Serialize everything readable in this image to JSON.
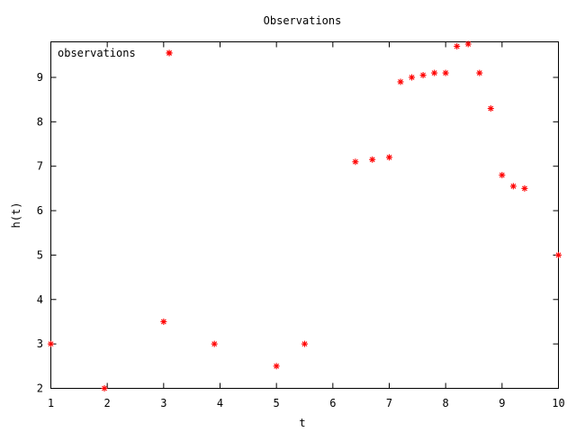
{
  "chart_data": {
    "type": "scatter",
    "title": "Observations",
    "xlabel": "t",
    "ylabel": "h(t)",
    "xlim": [
      1,
      10
    ],
    "ylim": [
      2,
      9.8
    ],
    "xticks": [
      1,
      2,
      3,
      4,
      5,
      6,
      7,
      8,
      9,
      10
    ],
    "yticks": [
      2,
      3,
      4,
      5,
      6,
      7,
      8,
      9
    ],
    "legend": {
      "position": "top-left",
      "entries": [
        "observations"
      ]
    },
    "grid": false,
    "marker": "asterisk",
    "series": [
      {
        "name": "observations",
        "color": "#ff0000",
        "points": [
          {
            "x": 1.0,
            "y": 3.0
          },
          {
            "x": 1.95,
            "y": 2.0
          },
          {
            "x": 3.0,
            "y": 3.5
          },
          {
            "x": 3.1,
            "y": 9.55
          },
          {
            "x": 3.9,
            "y": 3.0
          },
          {
            "x": 5.0,
            "y": 2.5
          },
          {
            "x": 5.5,
            "y": 3.0
          },
          {
            "x": 6.4,
            "y": 7.1
          },
          {
            "x": 6.7,
            "y": 7.15
          },
          {
            "x": 7.0,
            "y": 7.2
          },
          {
            "x": 7.2,
            "y": 8.9
          },
          {
            "x": 7.4,
            "y": 9.0
          },
          {
            "x": 7.6,
            "y": 9.05
          },
          {
            "x": 7.8,
            "y": 9.1
          },
          {
            "x": 8.0,
            "y": 9.1
          },
          {
            "x": 8.2,
            "y": 9.7
          },
          {
            "x": 8.4,
            "y": 9.75
          },
          {
            "x": 8.6,
            "y": 9.1
          },
          {
            "x": 8.8,
            "y": 8.3
          },
          {
            "x": 9.0,
            "y": 6.8
          },
          {
            "x": 9.2,
            "y": 6.55
          },
          {
            "x": 9.4,
            "y": 6.5
          },
          {
            "x": 10.0,
            "y": 5.0
          }
        ]
      }
    ]
  }
}
